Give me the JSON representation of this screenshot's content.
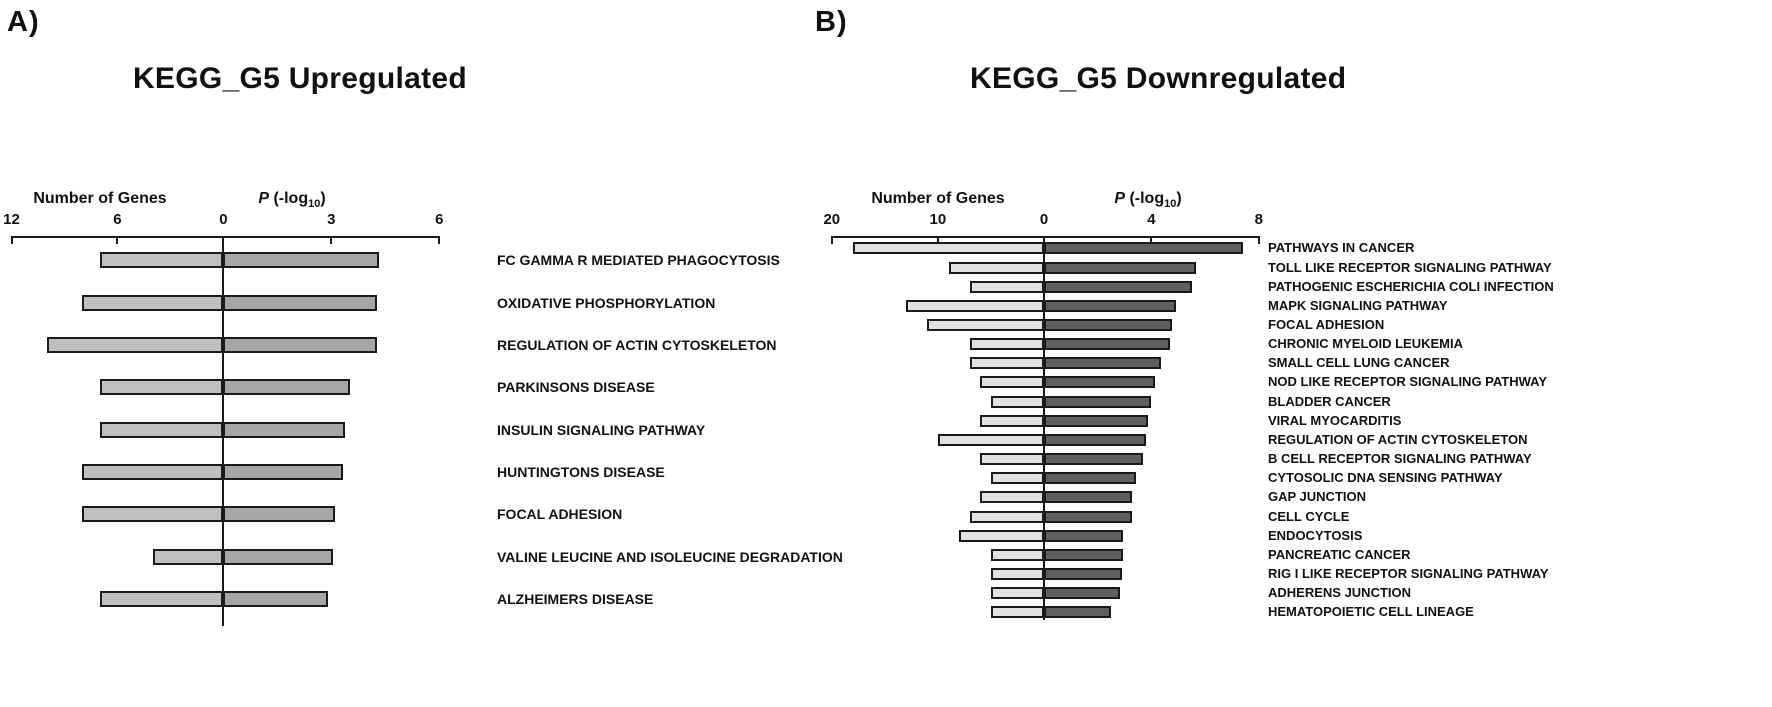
{
  "figure": {
    "markers": [
      "A)",
      "B)"
    ],
    "p_label": {
      "italic": "P",
      "open": " (-log",
      "sub": "10",
      "close": ")"
    },
    "colors": {
      "outline": "#1a1a1a",
      "upregulated_genes_fill": "#bfbfbf",
      "upregulated_p_fill": "#a6a6a6",
      "downregulated_genes_fill": "#e2e2e2",
      "downregulated_p_fill": "#5f5f5f",
      "text": "#111111",
      "background": "#ffffff"
    }
  },
  "chart_data": [
    {
      "type": "bar",
      "panel": "A",
      "title": "KEGG_G5 Upregulated",
      "orientation": "horizontal_diverging",
      "grid": false,
      "legend": "none",
      "categories": [
        "FC GAMMA R MEDIATED PHAGOCYTOSIS",
        "OXIDATIVE PHOSPHORYLATION",
        "REGULATION OF ACTIN CYTOSKELETON",
        "PARKINSONS DISEASE",
        "INSULIN SIGNALING PATHWAY",
        "HUNTINGTONS DISEASE",
        "FOCAL ADHESION",
        "VALINE LEUCINE AND ISOLEUCINE DEGRADATION",
        "ALZHEIMERS DISEASE"
      ],
      "series": [
        {
          "name": "Number of Genes",
          "side": "left",
          "max": 12,
          "ticks": [
            12,
            6,
            0
          ],
          "values": [
            7,
            8,
            10,
            7,
            7,
            8,
            8,
            4,
            7
          ]
        },
        {
          "name": "P (-log10)",
          "side": "right",
          "max": 6,
          "ticks": [
            0,
            3,
            6
          ],
          "values": [
            4.33,
            4.28,
            4.28,
            3.52,
            3.39,
            3.32,
            3.1,
            3.05,
            2.9
          ]
        }
      ],
      "colors": {
        "genes_fill": "#bfbfbf",
        "p_fill": "#a6a6a6",
        "outline": "#1a1a1a"
      }
    },
    {
      "type": "bar",
      "panel": "B",
      "title": "KEGG_G5 Downregulated",
      "orientation": "horizontal_diverging",
      "grid": false,
      "legend": "none",
      "categories": [
        "PATHWAYS IN CANCER",
        "TOLL LIKE RECEPTOR SIGNALING PATHWAY",
        "PATHOGENIC ESCHERICHIA COLI INFECTION",
        "MAPK SIGNALING PATHWAY",
        "FOCAL ADHESION",
        "CHRONIC MYELOID LEUKEMIA",
        "SMALL CELL LUNG CANCER",
        "NOD LIKE RECEPTOR SIGNALING PATHWAY",
        "BLADDER CANCER",
        "VIRAL MYOCARDITIS",
        "REGULATION OF ACTIN CYTOSKELETON",
        "B CELL RECEPTOR SIGNALING PATHWAY",
        "CYTOSOLIC DNA SENSING PATHWAY",
        "GAP JUNCTION",
        "CELL CYCLE",
        "ENDOCYTOSIS",
        "PANCREATIC CANCER",
        "RIG I LIKE RECEPTOR SIGNALING PATHWAY",
        "ADHERENS JUNCTION",
        "HEMATOPOIETIC CELL LINEAGE"
      ],
      "series": [
        {
          "name": "Number of Genes",
          "side": "left",
          "max": 20,
          "ticks": [
            20,
            10,
            0
          ],
          "values": [
            18,
            9,
            7,
            13,
            11,
            7,
            7,
            6,
            5,
            6,
            10,
            6,
            5,
            6,
            7,
            8,
            5,
            5,
            5,
            5
          ]
        },
        {
          "name": "P (-log10)",
          "side": "right",
          "max": 8,
          "ticks": [
            0,
            4,
            8
          ],
          "values": [
            7.43,
            5.65,
            5.5,
            4.93,
            4.76,
            4.71,
            4.34,
            4.15,
            3.97,
            3.86,
            3.79,
            3.69,
            3.42,
            3.28,
            3.27,
            2.95,
            2.93,
            2.89,
            2.84,
            2.51
          ]
        }
      ],
      "colors": {
        "genes_fill": "#e2e2e2",
        "p_fill": "#5f5f5f",
        "outline": "#1a1a1a"
      }
    }
  ]
}
